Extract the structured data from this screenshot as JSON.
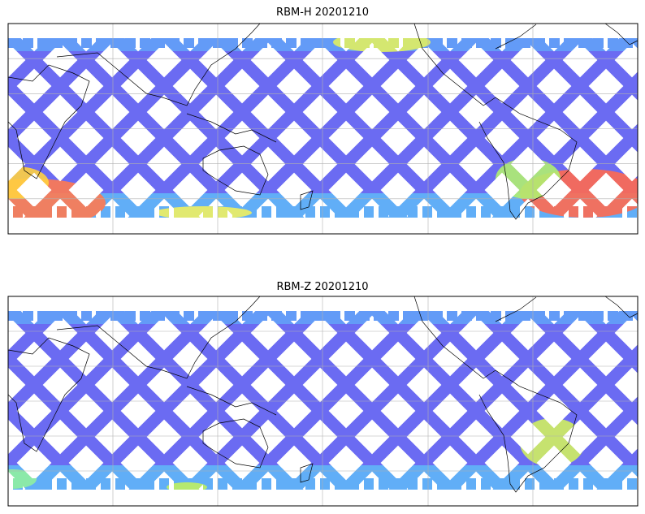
{
  "panels": [
    {
      "title": "RBM-H 20201210"
    },
    {
      "title": "RBM-Z 20201210"
    }
  ]
}
